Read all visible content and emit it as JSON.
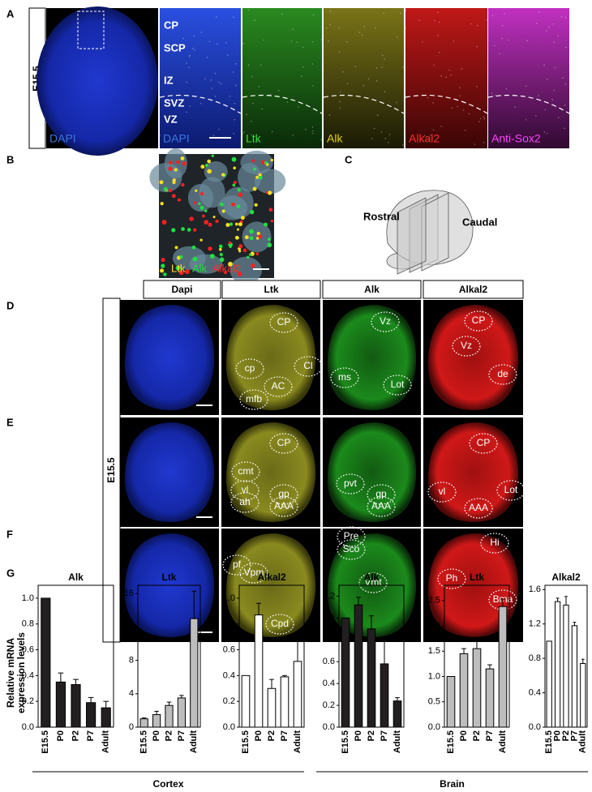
{
  "panel_labels": [
    "A",
    "B",
    "C",
    "D",
    "E",
    "F",
    "G"
  ],
  "panel_a": {
    "stage": "E15.5",
    "layers": [
      "CP",
      "SCP",
      "IZ",
      "SVZ",
      "VZ"
    ],
    "channels": [
      "DAPI",
      "DAPI",
      "Ltk",
      "Alk",
      "Alkal2",
      "Anti-Sox2"
    ]
  },
  "panel_b": {
    "channels": [
      "Ltk",
      "Alk",
      "Alkal2"
    ]
  },
  "panel_c": {
    "rostral": "Rostral",
    "caudal": "Caudal"
  },
  "panel_def": {
    "stage": "E15.5",
    "columns": [
      "Dapi",
      "Ltk",
      "Alk",
      "Alkal2"
    ],
    "regions": [
      [
        [],
        [
          "CP",
          "cp",
          "Cl",
          "AC",
          "mfb"
        ],
        [
          "Vz",
          "ms",
          "Lot"
        ],
        [
          "CP",
          "Vz",
          "de"
        ]
      ],
      [
        [],
        [
          "CP",
          "cmt",
          "vl",
          "ah",
          "gp",
          "AAA"
        ],
        [
          "pvt",
          "gp",
          "AAA"
        ],
        [
          "CP",
          "vl",
          "AAA",
          "Lot"
        ]
      ],
      [
        [],
        [
          "pf",
          "Vpm",
          "Cpd"
        ],
        [
          "Pre",
          "Sco",
          "Vmt"
        ],
        [
          "Hi",
          "Ph",
          "Bma"
        ]
      ]
    ]
  },
  "panel_g": {
    "y_label": [
      "Relative mRNA",
      "expression levels"
    ],
    "groups": [
      "Cortex",
      "Brain"
    ]
  },
  "chart_data": [
    {
      "type": "bar",
      "title": "Alk",
      "categories": [
        "E15.5",
        "P0",
        "P2",
        "P7",
        "Adult"
      ],
      "values": [
        1.0,
        0.35,
        0.33,
        0.19,
        0.15
      ],
      "errors": [
        null,
        0.07,
        0.04,
        0.04,
        0.05
      ],
      "color": "#231f20",
      "ylim": [
        0,
        1.1
      ],
      "yticks": [
        {
          "value": 0,
          "label": "0.0"
        },
        0.2,
        0.4,
        0.6,
        0.8,
        {
          "value": 1,
          "label": "1.0"
        }
      ]
    },
    {
      "type": "bar",
      "title": "Ltk",
      "categories": [
        "E15.5",
        "P0",
        "P2",
        "P7",
        "Adult"
      ],
      "values": [
        1.0,
        1.5,
        2.6,
        3.5,
        13.0
      ],
      "errors": [
        0.1,
        0.4,
        0.4,
        0.3,
        3.3
      ],
      "color": "#bdbdbd",
      "ylim": [
        0,
        17
      ],
      "yticks": [
        0,
        4,
        8,
        12,
        16
      ]
    },
    {
      "type": "bar",
      "title": "Alkal2",
      "categories": [
        "E15.5",
        "P0",
        "P2",
        "P7",
        "Adult"
      ],
      "values": [
        0.4,
        0.87,
        0.3,
        0.39,
        0.51
      ],
      "errors": [
        null,
        0.09,
        0.07,
        0.01,
        0.16
      ],
      "color": "#ffffff",
      "ylim": [
        0,
        1.1
      ],
      "yticks": [
        {
          "value": 0,
          "label": "0.0"
        },
        0.2,
        0.4,
        0.6,
        0.8,
        {
          "value": 1,
          "label": "1.0"
        }
      ]
    },
    {
      "type": "bar",
      "title": "Alk",
      "categories": [
        "E15.5",
        "P0",
        "P2",
        "P7",
        "Adult"
      ],
      "values": [
        1.0,
        1.12,
        0.9,
        0.58,
        0.24
      ],
      "errors": [
        null,
        0.07,
        0.12,
        0.23,
        0.03
      ],
      "color": "#231f20",
      "ylim": [
        0,
        1.3
      ],
      "yticks": [
        {
          "value": 0,
          "label": "0.0"
        },
        0.2,
        0.4,
        0.6,
        0.8,
        {
          "value": 1,
          "label": "1.0"
        },
        1.2
      ]
    },
    {
      "type": "bar",
      "title": "Ltk",
      "categories": [
        "E15.5",
        "P0",
        "P2",
        "P7",
        "Adult"
      ],
      "values": [
        1.0,
        1.45,
        1.55,
        1.15,
        2.38
      ],
      "errors": [
        null,
        0.1,
        0.15,
        0.08,
        0.15
      ],
      "color": "#bdbdbd",
      "ylim": [
        0,
        2.8
      ],
      "yticks": [
        {
          "value": 0,
          "label": "0.0"
        },
        0.5,
        {
          "value": 1,
          "label": "1.0"
        },
        1.5,
        {
          "value": 2,
          "label": "2.0"
        },
        2.5
      ]
    },
    {
      "type": "bar",
      "title": "Alkal2",
      "categories": [
        "E15.5",
        "P0",
        "P2",
        "P7",
        "Adult"
      ],
      "values": [
        1.0,
        1.46,
        1.42,
        1.18,
        0.74
      ],
      "errors": [
        null,
        0.04,
        0.1,
        0.04,
        0.05
      ],
      "color": "#ffffff",
      "ylim": [
        0,
        1.65
      ],
      "yticks": [
        {
          "value": 0,
          "label": "0.0"
        },
        0.4,
        0.8,
        1.2,
        1.6
      ]
    }
  ]
}
